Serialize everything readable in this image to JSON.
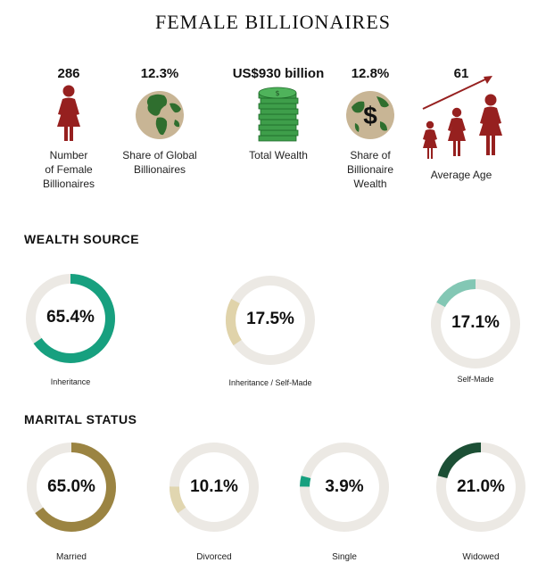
{
  "title": "FEMALE BILLIONAIRES",
  "stats": [
    {
      "value": "286",
      "label_lines": [
        "Number",
        "of Female",
        "Billionaires"
      ],
      "icon": "woman-icon"
    },
    {
      "value": "12.3%",
      "label_lines": [
        "Share of Global",
        "Billionaires"
      ],
      "icon": "globe-icon"
    },
    {
      "value": "US$930 billion",
      "label_lines": [
        "Total Wealth"
      ],
      "icon": "money-stack-icon"
    },
    {
      "value": "12.8%",
      "label_lines": [
        "Share of",
        "Billionaire",
        "Wealth"
      ],
      "icon": "globe-dollar-icon"
    },
    {
      "value": "61",
      "label_lines": [
        "Average Age"
      ],
      "icon": "growing-women-arrow-icon"
    }
  ],
  "sections": {
    "wealth_source": "WEALTH SOURCE",
    "marital_status": "MARITAL STATUS"
  },
  "colors": {
    "track": "#ece9e4",
    "inheritance": "#17a07f",
    "inheritance_self_made": "#e0d3aa",
    "self_made": "#83c7b4",
    "married": "#9b8442",
    "divorced": "#e1d6b0",
    "single": "#17a07f",
    "widowed": "#1c4f35",
    "woman": "#96201f",
    "money": "#3e9e4a",
    "globe_land": "#2f6e2e",
    "globe_sea": "#c8b595"
  },
  "chart_data": [
    {
      "type": "pie",
      "title": "WEALTH SOURCE",
      "categories": [
        "Inheritance",
        "Inheritance / Self-Made",
        "Self-Made"
      ],
      "values": [
        65.4,
        17.5,
        17.1
      ],
      "labels": [
        "65.4%",
        "17.5%",
        "17.1%"
      ]
    },
    {
      "type": "pie",
      "title": "MARITAL STATUS",
      "categories": [
        "Married",
        "Divorced",
        "Single",
        "Widowed"
      ],
      "values": [
        65.0,
        10.1,
        3.9,
        21.0
      ],
      "labels": [
        "65.0%",
        "10.1%",
        "3.9%",
        "21.0%"
      ]
    }
  ]
}
